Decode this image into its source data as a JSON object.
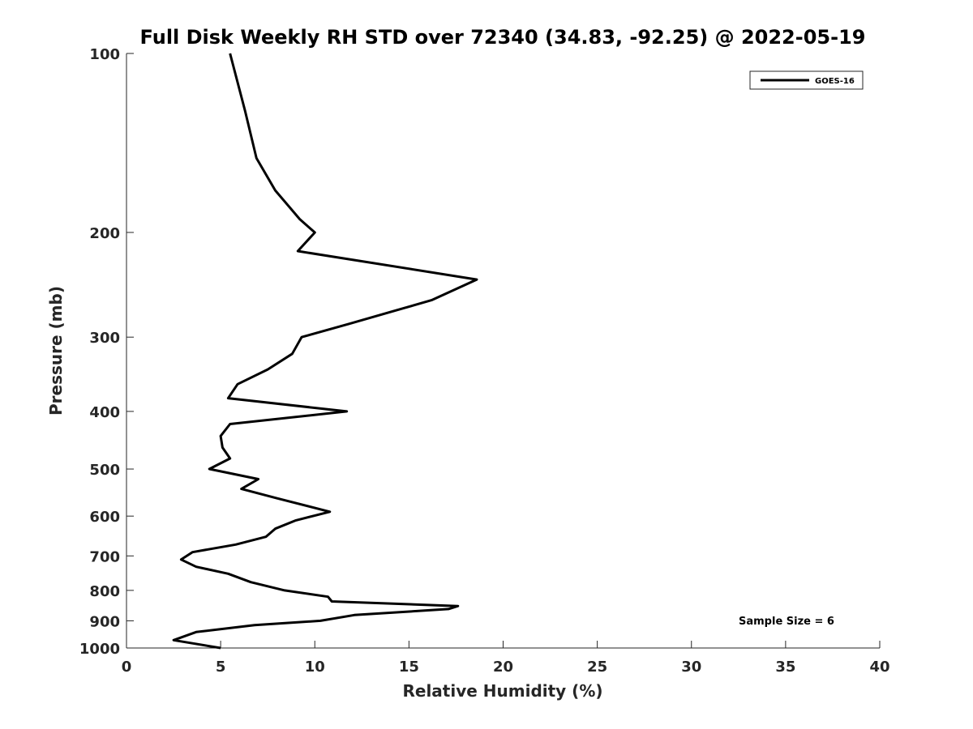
{
  "chart_data": {
    "type": "line",
    "title": "Full Disk Weekly RH STD over 72340 (34.83, -92.25) @ 2022-05-19",
    "xlabel": "Relative Humidity (%)",
    "ylabel": "Pressure (mb)",
    "xlim": [
      0,
      40
    ],
    "ylim": [
      100,
      1000
    ],
    "yscale": "log",
    "y_reversed": true,
    "grid": false,
    "legend_position": "top-right",
    "x_ticks": [
      "0",
      "5",
      "10",
      "15",
      "20",
      "25",
      "30",
      "35",
      "40"
    ],
    "y_ticks": [
      "100",
      "200",
      "300",
      "400",
      "500",
      "600",
      "700",
      "800",
      "900",
      "1000"
    ],
    "annotation": "Sample Size = 6",
    "series": [
      {
        "name": "GOES-16",
        "color": "#000000",
        "points": [
          [
            5.5,
            100
          ],
          [
            6.3,
            125
          ],
          [
            6.9,
            150
          ],
          [
            7.9,
            170
          ],
          [
            9.2,
            190
          ],
          [
            10.0,
            200
          ],
          [
            9.1,
            215
          ],
          [
            18.6,
            240
          ],
          [
            16.2,
            260
          ],
          [
            11.8,
            285
          ],
          [
            9.3,
            300
          ],
          [
            8.8,
            320
          ],
          [
            7.5,
            340
          ],
          [
            5.9,
            360
          ],
          [
            5.4,
            380
          ],
          [
            11.7,
            400
          ],
          [
            5.5,
            420
          ],
          [
            5.0,
            440
          ],
          [
            5.1,
            460
          ],
          [
            5.5,
            480
          ],
          [
            4.4,
            500
          ],
          [
            7.0,
            520
          ],
          [
            6.1,
            540
          ],
          [
            8.0,
            560
          ],
          [
            10.8,
            590
          ],
          [
            9.0,
            610
          ],
          [
            7.9,
            630
          ],
          [
            7.4,
            650
          ],
          [
            5.8,
            670
          ],
          [
            3.5,
            690
          ],
          [
            2.9,
            710
          ],
          [
            3.7,
            730
          ],
          [
            5.4,
            750
          ],
          [
            6.6,
            775
          ],
          [
            8.4,
            800
          ],
          [
            10.7,
            820
          ],
          [
            10.9,
            835
          ],
          [
            17.6,
            850
          ],
          [
            17.1,
            860
          ],
          [
            12.1,
            880
          ],
          [
            10.3,
            900
          ],
          [
            6.8,
            915
          ],
          [
            3.7,
            940
          ],
          [
            2.5,
            970
          ],
          [
            5.0,
            1000
          ]
        ]
      }
    ]
  }
}
